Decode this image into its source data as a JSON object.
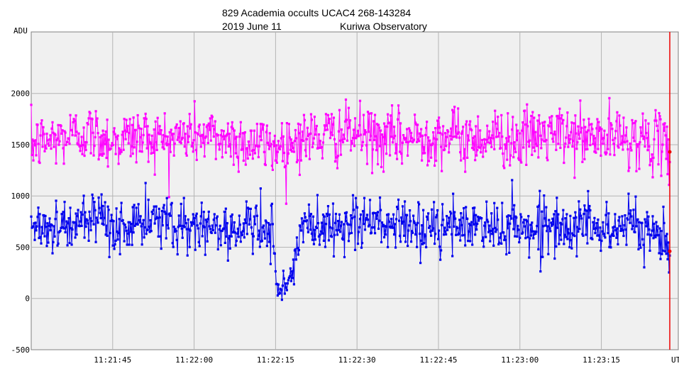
{
  "chart_data": {
    "type": "line",
    "title_line1": "829 Academia occults UCAC4 268-143284",
    "title_line2_date": "2019 June 11",
    "title_line2_site": "Kuriwa Observatory",
    "ylabel": "ADU",
    "xlabel": "UT",
    "ylim": [
      -500,
      2600
    ],
    "xlim_seconds_after_112130": [
      0,
      117.6
    ],
    "y_ticks": [
      "2000",
      "1500",
      "1000",
      "500",
      "0",
      "-500"
    ],
    "y_tick_values": [
      2000,
      1500,
      1000,
      500,
      0,
      -500
    ],
    "x_ticks": [
      "11:21:45",
      "11:22:00",
      "11:22:15",
      "11:22:30",
      "11:22:45",
      "11:23:00",
      "11:23:15"
    ],
    "x_tick_values": [
      15,
      30,
      45,
      60,
      75,
      90,
      105
    ],
    "grid": true,
    "marker_time": 117.6,
    "colors": {
      "target": "#0000ee",
      "comparison": "#ff00ff",
      "marker": "#ee0000",
      "frame_bg": "#f0f0f0",
      "grid": "#b4b4b4"
    },
    "series": [
      {
        "role": "comparison",
        "mean": 1560,
        "sd": 140,
        "x": [
          0,
          5,
          10,
          15,
          20,
          25,
          30,
          35,
          40,
          45,
          50,
          55,
          60,
          65,
          70,
          75,
          80,
          85,
          90,
          95,
          100,
          105,
          110,
          115,
          117.6
        ],
        "values": [
          1500,
          1560,
          1620,
          1540,
          1590,
          1550,
          1600,
          1570,
          1520,
          1480,
          1560,
          1590,
          1610,
          1540,
          1570,
          1600,
          1560,
          1580,
          1550,
          1600,
          1580,
          1560,
          1570,
          1530,
          1430
        ]
      },
      {
        "role": "target",
        "mean": 700,
        "sd": 130,
        "x": [
          0,
          5,
          10,
          15,
          20,
          25,
          30,
          35,
          40,
          44.5,
          45,
          46,
          47,
          48,
          50,
          55,
          60,
          65,
          70,
          75,
          80,
          85,
          90,
          95,
          100,
          105,
          110,
          115,
          117.6
        ],
        "values": [
          720,
          700,
          740,
          690,
          720,
          760,
          700,
          680,
          690,
          650,
          180,
          120,
          160,
          200,
          710,
          700,
          750,
          720,
          690,
          670,
          700,
          710,
          690,
          700,
          720,
          690,
          700,
          660,
          460
        ]
      }
    ]
  }
}
